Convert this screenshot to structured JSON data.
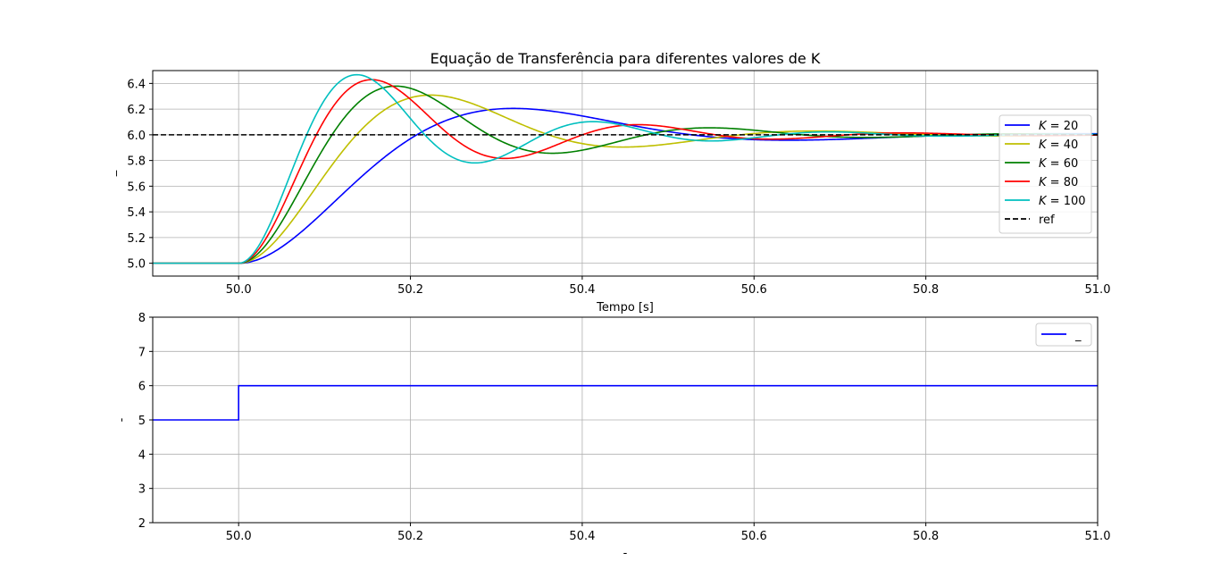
{
  "chart_data": [
    {
      "type": "line",
      "title": "Equação de Transferência para diferentes valores de K",
      "xlabel": "Tempo [s]",
      "ylabel": "_",
      "xlim": [
        49.9,
        51.0
      ],
      "ylim": [
        4.9,
        6.5
      ],
      "xticks": [
        "50.0",
        "50.2",
        "50.4",
        "50.6",
        "50.8",
        "51.0"
      ],
      "xtick_values": [
        50.0,
        50.2,
        50.4,
        50.6,
        50.8,
        51.0
      ],
      "yticks": [
        "5.0",
        "5.2",
        "5.4",
        "5.6",
        "5.8",
        "6.0",
        "6.2",
        "6.4"
      ],
      "ytick_values": [
        5.0,
        5.2,
        5.4,
        5.6,
        5.8,
        6.0,
        6.2,
        6.4
      ],
      "grid": true,
      "legend_position": "center-right",
      "step": {
        "t0": 50.0,
        "from": 5.0,
        "to": 6.0
      },
      "series": [
        {
          "name": "K = 20",
          "label_k": "20",
          "color": "#0000ff",
          "zeta": 0.45,
          "wn": 11.0,
          "style": "solid"
        },
        {
          "name": "K = 40",
          "label_k": "40",
          "color": "#bfbf00",
          "zeta": 0.35,
          "wn": 15.0,
          "style": "solid"
        },
        {
          "name": "K = 60",
          "label_k": "60",
          "color": "#008000",
          "zeta": 0.295,
          "wn": 18.0,
          "style": "solid"
        },
        {
          "name": "K = 80",
          "label_k": "80",
          "color": "#ff0000",
          "zeta": 0.26,
          "wn": 21.0,
          "style": "solid"
        },
        {
          "name": "K = 100",
          "label_k": "100",
          "color": "#00bfbf",
          "zeta": 0.235,
          "wn": 23.5,
          "style": "solid"
        },
        {
          "name": "ref",
          "color": "#000000",
          "constant": 6.0,
          "style": "dashed"
        }
      ]
    },
    {
      "type": "line",
      "xlabel": "-",
      "ylabel": "-",
      "xlim": [
        49.9,
        51.0
      ],
      "ylim": [
        2,
        8
      ],
      "xticks": [
        "50.0",
        "50.2",
        "50.4",
        "50.6",
        "50.8",
        "51.0"
      ],
      "xtick_values": [
        50.0,
        50.2,
        50.4,
        50.6,
        50.8,
        51.0
      ],
      "yticks": [
        "2",
        "3",
        "4",
        "5",
        "6",
        "7",
        "8"
      ],
      "ytick_values": [
        2,
        3,
        4,
        5,
        6,
        7,
        8
      ],
      "grid": true,
      "legend_position": "top-right",
      "series": [
        {
          "name": "_",
          "color": "#0000ff",
          "x": [
            49.9,
            50.0,
            50.0,
            51.0
          ],
          "y": [
            5,
            5,
            6,
            6
          ],
          "style": "solid"
        }
      ]
    }
  ]
}
